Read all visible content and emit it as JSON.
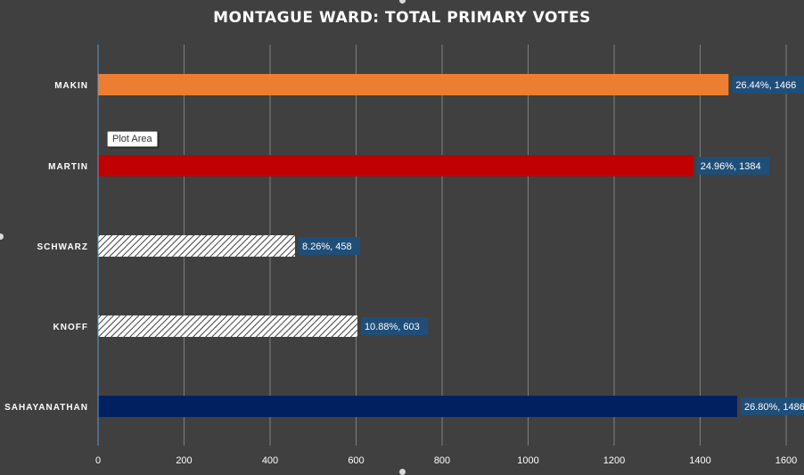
{
  "tooltip": "Plot Area",
  "chart_data": {
    "type": "bar",
    "orientation": "horizontal",
    "title": "MONTAGUE WARD: TOTAL PRIMARY VOTES",
    "categories": [
      "MAKIN",
      "MARTIN",
      "SCHWARZ",
      "KNOFF",
      "SAHAYANATHAN"
    ],
    "values": [
      1466,
      1384,
      458,
      603,
      1486
    ],
    "data_labels": [
      "26.44%, 1466",
      "24.96%, 1384",
      "8.26%, 458",
      "10.88%, 603",
      "26.80%, 1486"
    ],
    "bar_colors": [
      "#ED7D31",
      "#C00000",
      "hatch",
      "hatch",
      "#002060"
    ],
    "xlim": [
      0,
      1600
    ],
    "xticks": [
      0,
      200,
      400,
      600,
      800,
      1000,
      1200,
      1400,
      1600
    ],
    "grid": true,
    "label_bg": "#1F4E79",
    "background": "#404040"
  }
}
